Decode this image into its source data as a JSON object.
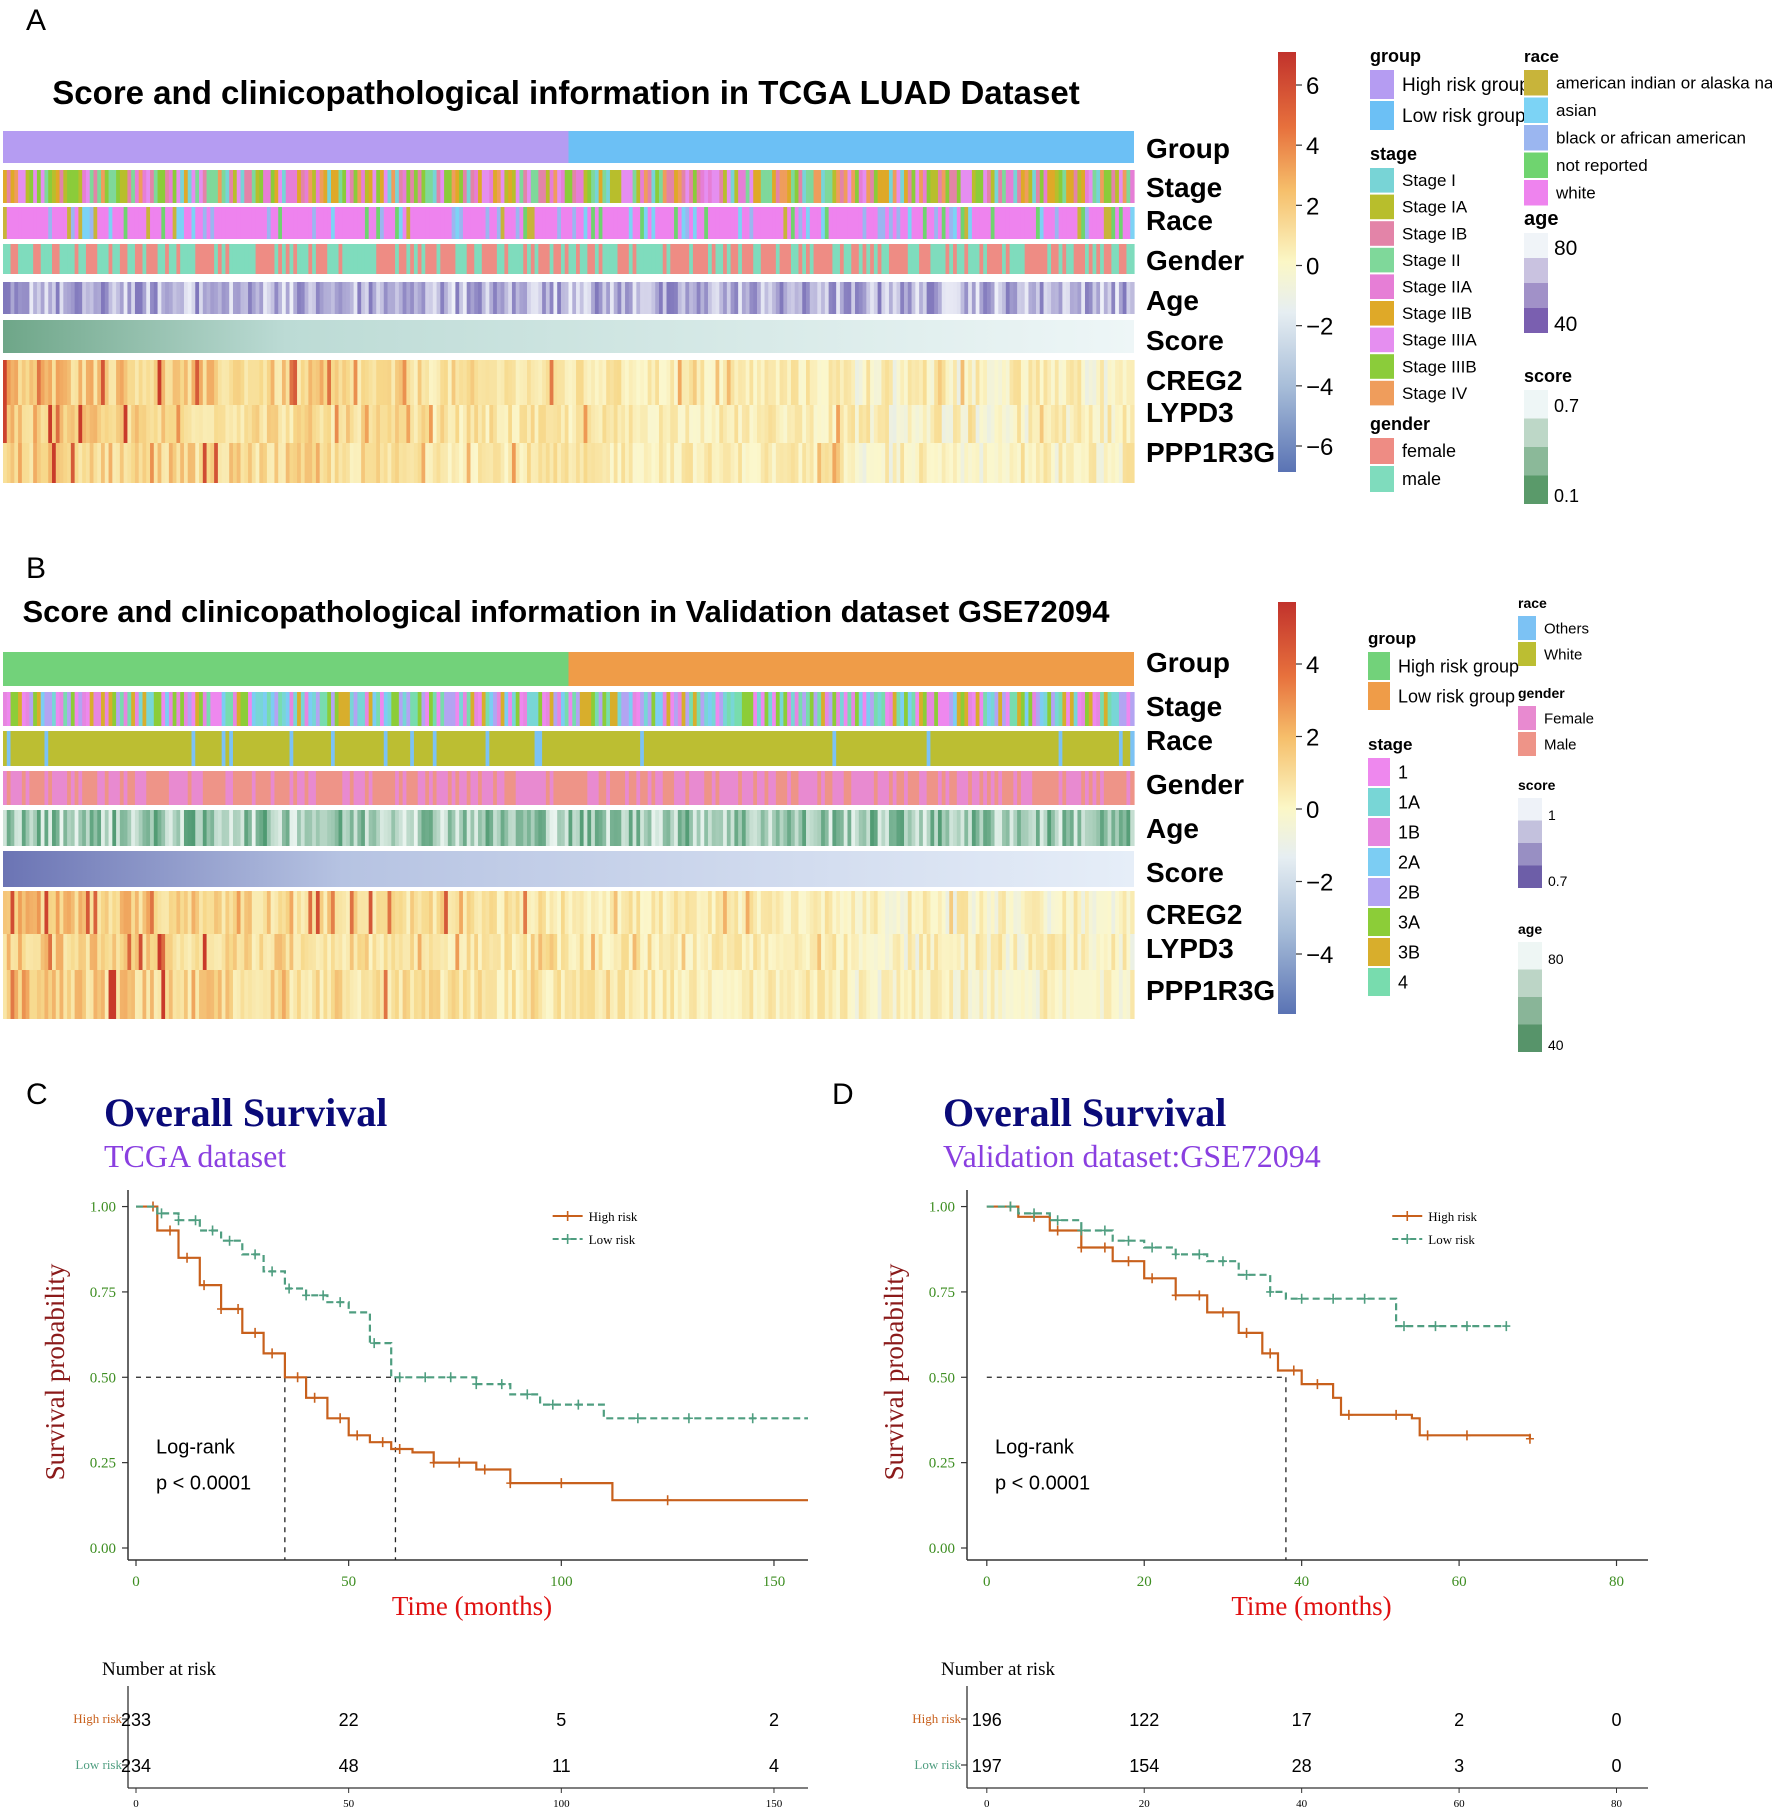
{
  "panels": {
    "A": {
      "letter": "A",
      "title": "Score and clinicopathological information in TCGA LUAD Dataset",
      "rows": [
        "Group",
        "Stage",
        "Race",
        "Gender",
        "Age",
        "Score",
        "CREG2",
        "LYPD3",
        "PPP1R3G"
      ],
      "colorbar_ticks": [
        "6",
        "4",
        "2",
        "0",
        "−2",
        "−4",
        "−6"
      ],
      "legend": {
        "group": {
          "title": "group",
          "items": [
            {
              "label": "High risk group",
              "color": "#b59cf2"
            },
            {
              "label": "Low risk group",
              "color": "#6cc0f5"
            }
          ]
        },
        "stage": {
          "title": "stage",
          "items": [
            {
              "label": "Stage I",
              "color": "#78d4d6"
            },
            {
              "label": "Stage IA",
              "color": "#b8be2c"
            },
            {
              "label": "Stage IB",
              "color": "#e384a8"
            },
            {
              "label": "Stage II",
              "color": "#7fd89a"
            },
            {
              "label": "Stage IIA",
              "color": "#e67ed6"
            },
            {
              "label": "Stage IIB",
              "color": "#dfa928"
            },
            {
              "label": "Stage IIIA",
              "color": "#e58ef0"
            },
            {
              "label": "Stage IIIB",
              "color": "#8bcc3a"
            },
            {
              "label": "Stage IV",
              "color": "#ef9d5c"
            }
          ]
        },
        "gender": {
          "title": "gender",
          "items": [
            {
              "label": "female",
              "color": "#ee8c84"
            },
            {
              "label": "male",
              "color": "#7fdcbd"
            }
          ]
        },
        "race": {
          "title": "race",
          "items": [
            {
              "label": "american indian or alaska native",
              "color": "#c8b43a"
            },
            {
              "label": "asian",
              "color": "#7cd3f5"
            },
            {
              "label": "black or african american",
              "color": "#9bb6f0"
            },
            {
              "label": "not reported",
              "color": "#6fd46f"
            },
            {
              "label": "white",
              "color": "#ee83ee"
            }
          ]
        },
        "age": {
          "title": "age",
          "high": "80",
          "low": "40"
        },
        "score": {
          "title": "score",
          "high": "0.7",
          "low": "0.1"
        }
      }
    },
    "B": {
      "letter": "B",
      "title": "Score and clinicopathological information in Validation dataset GSE72094",
      "rows": [
        "Group",
        "Stage",
        "Race",
        "Gender",
        "Age",
        "Score",
        "CREG2",
        "LYPD3",
        "PPP1R3G"
      ],
      "colorbar_ticks": [
        "4",
        "2",
        "0",
        "−2",
        "−4"
      ],
      "legend": {
        "group": {
          "title": "group",
          "items": [
            {
              "label": "High risk group",
              "color": "#72d27a"
            },
            {
              "label": "Low risk group",
              "color": "#ef9c48"
            }
          ]
        },
        "stage": {
          "title": "stage",
          "items": [
            {
              "label": "1",
              "color": "#ee88ee"
            },
            {
              "label": "1A",
              "color": "#78d6d6"
            },
            {
              "label": "1B",
              "color": "#e686e0"
            },
            {
              "label": "2A",
              "color": "#7ccdf3"
            },
            {
              "label": "2B",
              "color": "#b3a4f2"
            },
            {
              "label": "3A",
              "color": "#8ccd38"
            },
            {
              "label": "3B",
              "color": "#d8ae2c"
            },
            {
              "label": "4",
              "color": "#78dcae"
            }
          ]
        },
        "race": {
          "title": "race",
          "items": [
            {
              "label": "Others",
              "color": "#7cc2f4"
            },
            {
              "label": "White",
              "color": "#bcbe32"
            }
          ]
        },
        "gender": {
          "title": "gender",
          "items": [
            {
              "label": "Female",
              "color": "#e88ad0"
            },
            {
              "label": "Male",
              "color": "#ee9488"
            }
          ]
        },
        "score": {
          "title": "score",
          "high": "1",
          "low": "0.7"
        },
        "age": {
          "title": "age",
          "high": "80",
          "low": "40"
        }
      }
    },
    "C": {
      "letter": "C",
      "title": "Overall Survival",
      "subtitle": "TCGA dataset",
      "ylabel": "Survival probability",
      "xlabel": "Time (months)",
      "annotation_line1": "Log-rank",
      "annotation_line2": "p < 0.0001",
      "legend": [
        "High risk",
        "Low risk"
      ],
      "y_ticks": [
        "1.00",
        "0.75",
        "0.50",
        "0.25",
        "0.00"
      ],
      "x_ticks": [
        "0",
        "50",
        "100",
        "150"
      ],
      "risk_table": {
        "title": "Number at risk",
        "row_labels": [
          "High risk",
          "Low risk"
        ],
        "high": [
          "233",
          "22",
          "5",
          "2"
        ],
        "low": [
          "234",
          "48",
          "11",
          "4"
        ],
        "xlabel": "Time (months)",
        "x_ticks": [
          "0",
          "50",
          "100",
          "150"
        ]
      }
    },
    "D": {
      "letter": "D",
      "title": "Overall Survival",
      "subtitle": "Validation dataset:GSE72094",
      "ylabel": "Survival probability",
      "xlabel": "Time (months)",
      "annotation_line1": "Log-rank",
      "annotation_line2": "p < 0.0001",
      "legend": [
        "High risk",
        "Low risk"
      ],
      "y_ticks": [
        "1.00",
        "0.75",
        "0.50",
        "0.25",
        "0.00"
      ],
      "x_ticks": [
        "0",
        "20",
        "40",
        "60",
        "80"
      ],
      "risk_table": {
        "title": "Number at risk",
        "row_labels": [
          "High risk",
          "Low risk"
        ],
        "high": [
          "196",
          "122",
          "17",
          "2",
          "0"
        ],
        "low": [
          "197",
          "154",
          "28",
          "3",
          "0"
        ],
        "xlabel": "Time (months)",
        "x_ticks": [
          "0",
          "20",
          "40",
          "60",
          "80"
        ]
      }
    }
  },
  "colors": {
    "high_risk": "#c8601c",
    "low_risk": "#4f9e80",
    "title_navy": "#0a0a78",
    "subtitle_purple": "#8a3fe0",
    "ylabel_red": "#8b1a1a",
    "xlabel_red": "#e01010",
    "tick_green": "#3e8e22"
  },
  "chart_data": [
    {
      "type": "heatmap",
      "title": "Score and clinicopathological information in TCGA LUAD Dataset",
      "rows": [
        "Group",
        "Stage",
        "Race",
        "Gender",
        "Age",
        "Score",
        "CREG2",
        "LYPD3",
        "PPP1R3G"
      ],
      "color_range": [
        -7,
        7
      ],
      "colorbar_ticks": [
        6,
        4,
        2,
        0,
        -2,
        -4,
        -6
      ],
      "high_risk_fraction": 0.5
    },
    {
      "type": "heatmap",
      "title": "Score and clinicopathological information in Validation dataset GSE72094",
      "rows": [
        "Group",
        "Stage",
        "Race",
        "Gender",
        "Age",
        "Score",
        "CREG2",
        "LYPD3",
        "PPP1R3G"
      ],
      "color_range": [
        -5.5,
        5.5
      ],
      "colorbar_ticks": [
        4,
        2,
        0,
        -2,
        -4
      ],
      "high_risk_fraction": 0.5
    },
    {
      "type": "line",
      "title": "Overall Survival",
      "subtitle": "TCGA dataset",
      "xlabel": "Time (months)",
      "ylabel": "Survival probability",
      "xlim": [
        0,
        158
      ],
      "ylim": [
        0,
        1
      ],
      "median_line": {
        "y": 0.5,
        "x_high": 35,
        "x_low": 61
      },
      "series": [
        {
          "name": "High risk",
          "color": "#c8601c",
          "linestyle": "solid",
          "x": [
            0,
            5,
            10,
            15,
            20,
            25,
            30,
            35,
            40,
            45,
            50,
            55,
            60,
            65,
            70,
            80,
            88,
            100,
            112,
            158
          ],
          "y": [
            1.0,
            0.93,
            0.85,
            0.77,
            0.7,
            0.63,
            0.57,
            0.5,
            0.44,
            0.38,
            0.33,
            0.31,
            0.29,
            0.28,
            0.25,
            0.23,
            0.19,
            0.19,
            0.14,
            0.14
          ],
          "censor_x": [
            4,
            8,
            12,
            16,
            20,
            24,
            28,
            32,
            38,
            42,
            48,
            52,
            58,
            62,
            70,
            76,
            82,
            88,
            100,
            125
          ]
        },
        {
          "name": "Low risk",
          "color": "#4f9e80",
          "linestyle": "dashed",
          "x": [
            0,
            5,
            10,
            15,
            20,
            25,
            30,
            35,
            40,
            45,
            50,
            55,
            60,
            70,
            80,
            88,
            95,
            105,
            110,
            158
          ],
          "y": [
            1.0,
            0.98,
            0.96,
            0.93,
            0.9,
            0.86,
            0.81,
            0.76,
            0.74,
            0.72,
            0.69,
            0.6,
            0.5,
            0.5,
            0.48,
            0.45,
            0.42,
            0.42,
            0.38,
            0.38
          ],
          "censor_x": [
            6,
            10,
            14,
            18,
            22,
            28,
            32,
            36,
            40,
            44,
            48,
            56,
            62,
            68,
            74,
            80,
            86,
            92,
            98,
            104,
            118,
            130,
            145
          ]
        }
      ],
      "risk_table": {
        "times": [
          0,
          50,
          100,
          150
        ],
        "High risk": [
          233,
          22,
          5,
          2
        ],
        "Low risk": [
          234,
          48,
          11,
          4
        ]
      }
    },
    {
      "type": "line",
      "title": "Overall Survival",
      "subtitle": "Validation dataset:GSE72094",
      "xlabel": "Time (months)",
      "ylabel": "Survival probability",
      "xlim": [
        -1.5,
        84
      ],
      "ylim": [
        0,
        1
      ],
      "median_line": {
        "y": 0.5,
        "x_high": 38
      },
      "series": [
        {
          "name": "High risk",
          "color": "#c8601c",
          "linestyle": "solid",
          "x": [
            0,
            4,
            8,
            12,
            16,
            20,
            24,
            28,
            32,
            35,
            37,
            40,
            44,
            45,
            50,
            54,
            55,
            60,
            69
          ],
          "y": [
            1.0,
            0.97,
            0.93,
            0.88,
            0.84,
            0.79,
            0.74,
            0.69,
            0.63,
            0.57,
            0.52,
            0.48,
            0.44,
            0.39,
            0.39,
            0.38,
            0.33,
            0.33,
            0.32
          ],
          "censor_x": [
            3,
            6,
            9,
            12,
            15,
            18,
            21,
            24,
            27,
            30,
            33,
            36,
            39,
            42,
            46,
            52,
            56,
            61,
            69
          ]
        },
        {
          "name": "Low risk",
          "color": "#4f9e80",
          "linestyle": "dashed",
          "x": [
            0,
            4,
            8,
            12,
            16,
            20,
            24,
            28,
            32,
            36,
            38,
            44,
            50,
            52,
            56,
            66
          ],
          "y": [
            1.0,
            0.98,
            0.96,
            0.93,
            0.9,
            0.88,
            0.86,
            0.84,
            0.8,
            0.75,
            0.73,
            0.73,
            0.73,
            0.65,
            0.65,
            0.65
          ],
          "censor_x": [
            3,
            6,
            9,
            12,
            15,
            18,
            21,
            24,
            27,
            30,
            33,
            36,
            40,
            44,
            48,
            53,
            57,
            61,
            66
          ]
        }
      ],
      "risk_table": {
        "times": [
          0,
          20,
          40,
          60,
          80
        ],
        "High risk": [
          196,
          122,
          17,
          2,
          0
        ],
        "Low risk": [
          197,
          154,
          28,
          3,
          0
        ]
      }
    }
  ]
}
